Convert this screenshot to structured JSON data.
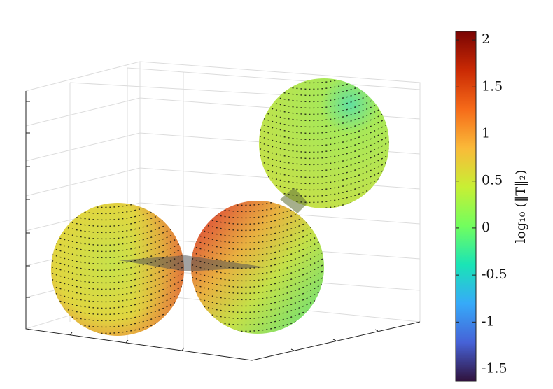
{
  "chart_data": {
    "type": "surface3d",
    "colormap": "turbo",
    "colorbar": {
      "label": "log₁₀ (‖T‖₂)",
      "clim": [
        -1.63,
        2.09
      ],
      "ticks": [
        2,
        1.5,
        1,
        0.5,
        0,
        -0.5,
        -1,
        -1.5
      ]
    },
    "grid": true
  }
}
